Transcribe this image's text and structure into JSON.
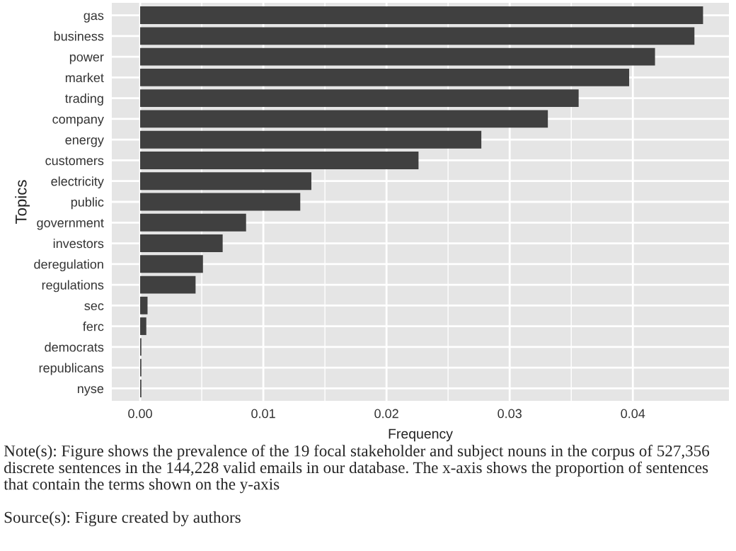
{
  "chart_data": {
    "type": "bar",
    "orientation": "horizontal",
    "xlabel": "Frequency",
    "ylabel": "Topics",
    "categories": [
      "gas",
      "business",
      "power",
      "market",
      "trading",
      "company",
      "energy",
      "customers",
      "electricity",
      "public",
      "government",
      "investors",
      "deregulation",
      "regulations",
      "sec",
      "ferc",
      "democrats",
      "republicans",
      "nyse"
    ],
    "values": [
      0.0457,
      0.045,
      0.0418,
      0.0397,
      0.0356,
      0.0331,
      0.0277,
      0.0226,
      0.0139,
      0.013,
      0.0086,
      0.0067,
      0.0051,
      0.0045,
      0.0006,
      0.0005,
      0.0001,
      0.0001,
      0.0001
    ],
    "color": "#404040",
    "xlim": [
      -0.0023,
      0.0478
    ],
    "xticks": [
      {
        "value": 0,
        "label": "0.00"
      },
      {
        "value": 0.01,
        "label": "0.01"
      },
      {
        "value": 0.02,
        "label": "0.02"
      },
      {
        "value": 0.03,
        "label": "0.03"
      },
      {
        "value": 0.04,
        "label": "0.04"
      }
    ],
    "grid": true,
    "annotations": [
      "Note(s): Figure shows the prevalence of the 19 focal stakeholder and subject nouns in the corpus of 527,356 discrete sentences in the 144,228 valid emails in our database. The x-axis shows the proportion of sentences that contain the terms shown on the y-axis",
      "Source(s): Figure created by authors"
    ]
  }
}
